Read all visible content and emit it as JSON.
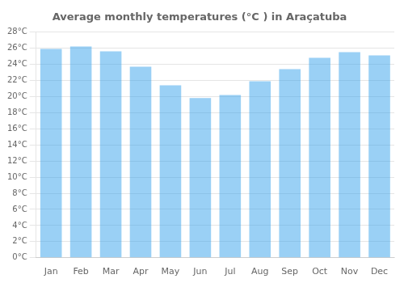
{
  "chart_data": {
    "type": "bar",
    "title": "Average monthly temperatures (°C ) in Araçatuba",
    "categories": [
      "Jan",
      "Feb",
      "Mar",
      "Apr",
      "May",
      "Jun",
      "Jul",
      "Aug",
      "Sep",
      "Oct",
      "Nov",
      "Dec"
    ],
    "values": [
      25.9,
      26.2,
      25.6,
      23.7,
      21.4,
      19.8,
      20.2,
      21.9,
      23.4,
      24.8,
      25.5,
      25.1
    ],
    "ylim": [
      0,
      28
    ],
    "yticks": [
      {
        "value": 0,
        "label": "0°C"
      },
      {
        "value": 2,
        "label": "2°C"
      },
      {
        "value": 4,
        "label": "4°C"
      },
      {
        "value": 6,
        "label": "6°C"
      },
      {
        "value": 8,
        "label": "8°C"
      },
      {
        "value": 10,
        "label": "10°C"
      },
      {
        "value": 12,
        "label": "12°C"
      },
      {
        "value": 14,
        "label": "14°C"
      },
      {
        "value": 16,
        "label": "16°C"
      },
      {
        "value": 18,
        "label": "18°C"
      },
      {
        "value": 20,
        "label": "20°C"
      },
      {
        "value": 22,
        "label": "22°C"
      },
      {
        "value": 24,
        "label": "24°C"
      },
      {
        "value": 26,
        "label": "26°C"
      },
      {
        "value": 28,
        "label": "28°C"
      }
    ],
    "grid": true
  }
}
